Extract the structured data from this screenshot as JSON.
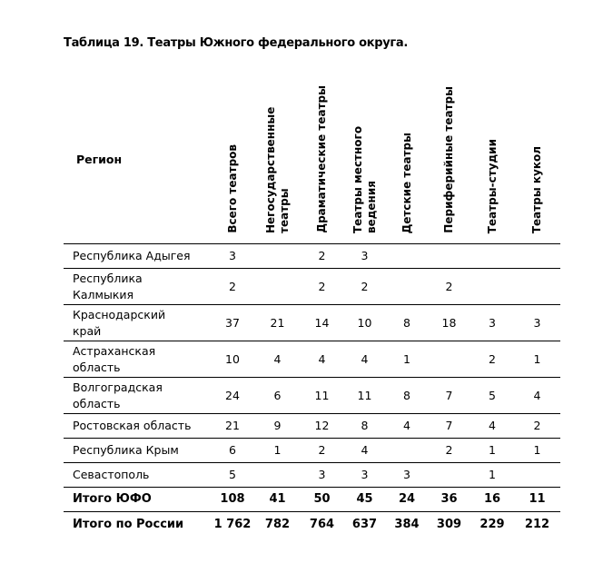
{
  "title": "Таблица 19. Театры Южного федерального округа.",
  "header": {
    "region": "Регион",
    "columns": [
      "Всего театров",
      "Негосударственные театры",
      "Драматические театры",
      "Театры местного ведения",
      "Детские театры",
      "Периферийные театры",
      "Театры-студии",
      "Театры кукол"
    ]
  },
  "rows": [
    {
      "region": "Республика Адыгея",
      "values": [
        "3",
        "",
        "2",
        "3",
        "",
        "",
        "",
        ""
      ]
    },
    {
      "region": "Республика Калмыкия",
      "values": [
        "2",
        "",
        "2",
        "2",
        "",
        "2",
        "",
        ""
      ]
    },
    {
      "region": "Краснодарский край",
      "values": [
        "37",
        "21",
        "14",
        "10",
        "8",
        "18",
        "3",
        "3"
      ]
    },
    {
      "region": "Астраханская область",
      "values": [
        "10",
        "4",
        "4",
        "4",
        "1",
        "",
        "2",
        "1"
      ]
    },
    {
      "region": "Волгоградская область",
      "values": [
        "24",
        "6",
        "11",
        "11",
        "8",
        "7",
        "5",
        "4"
      ]
    },
    {
      "region": "Ростовская область",
      "values": [
        "21",
        "9",
        "12",
        "8",
        "4",
        "7",
        "4",
        "2"
      ]
    },
    {
      "region": "Республика Крым",
      "values": [
        "6",
        "1",
        "2",
        "4",
        "",
        "2",
        "1",
        "1"
      ]
    },
    {
      "region": "Севастополь",
      "values": [
        "5",
        "",
        "3",
        "3",
        "3",
        "",
        "1",
        ""
      ]
    },
    {
      "region": "Итого ЮФО",
      "values": [
        "108",
        "41",
        "50",
        "45",
        "24",
        "36",
        "16",
        "11"
      ]
    },
    {
      "region": "Итого по России",
      "values": [
        "1 762",
        "782",
        "764",
        "637",
        "384",
        "309",
        "229",
        "212"
      ]
    }
  ]
}
